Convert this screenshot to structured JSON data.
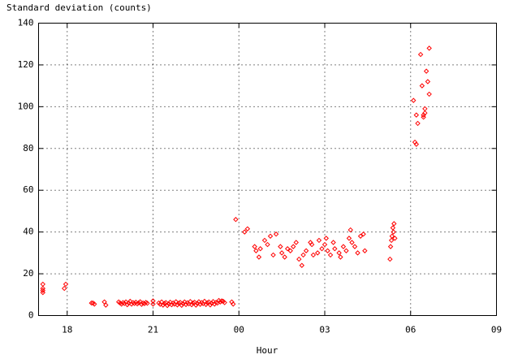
{
  "chart_data": {
    "type": "scatter",
    "ylabel": "Standard deviation (counts)",
    "xlabel": "Hour",
    "color": "#ff0000",
    "grid": true,
    "xlim": [
      17,
      33
    ],
    "xticks": [
      18,
      21,
      {
        "value": 24,
        "label": "00"
      },
      {
        "value": 27,
        "label": "03"
      },
      {
        "value": 30,
        "label": "06"
      },
      {
        "value": 33,
        "label": "09"
      }
    ],
    "ylim": [
      0,
      140
    ],
    "yticks": [
      0,
      20,
      40,
      60,
      80,
      100,
      120,
      140
    ],
    "x": [
      17.15,
      17.15,
      17.15,
      17.15,
      17.9,
      17.95,
      18.85,
      18.9,
      18.95,
      19.3,
      19.35,
      19.8,
      19.85,
      19.9,
      19.95,
      20.0,
      20.05,
      20.1,
      20.15,
      20.2,
      20.25,
      20.3,
      20.35,
      20.4,
      20.45,
      20.5,
      20.55,
      20.6,
      20.65,
      20.7,
      20.75,
      20.8,
      21.0,
      21.0,
      21.2,
      21.25,
      21.3,
      21.35,
      21.4,
      21.45,
      21.5,
      21.55,
      21.6,
      21.65,
      21.7,
      21.75,
      21.8,
      21.85,
      21.9,
      21.95,
      22.0,
      22.05,
      22.1,
      22.15,
      22.2,
      22.25,
      22.3,
      22.35,
      22.4,
      22.45,
      22.5,
      22.55,
      22.6,
      22.65,
      22.7,
      22.75,
      22.8,
      22.85,
      22.9,
      22.95,
      23.0,
      23.05,
      23.1,
      23.15,
      23.2,
      23.25,
      23.3,
      23.35,
      23.4,
      23.45,
      23.5,
      23.75,
      23.8,
      23.89,
      24.2,
      24.3,
      24.55,
      24.6,
      24.7,
      24.75,
      24.9,
      25.0,
      25.1,
      25.2,
      25.3,
      25.45,
      25.5,
      25.6,
      25.7,
      25.8,
      25.9,
      26.0,
      26.1,
      26.2,
      26.25,
      26.35,
      26.5,
      26.55,
      26.6,
      26.75,
      26.8,
      26.9,
      27.0,
      27.05,
      27.1,
      27.2,
      27.3,
      27.35,
      27.5,
      27.55,
      27.65,
      27.75,
      27.85,
      27.9,
      27.95,
      28.05,
      28.15,
      28.25,
      28.35,
      28.4,
      29.28,
      29.3,
      29.33,
      29.35,
      29.38,
      29.4,
      29.42,
      29.45,
      30.1,
      30.15,
      30.2,
      30.25,
      30.2,
      30.35,
      30.4,
      30.45,
      30.5,
      30.5,
      30.55,
      30.6,
      30.65,
      30.65,
      30.45
    ],
    "values": [
      15,
      13,
      12,
      11,
      13,
      15,
      6,
      6,
      5.5,
      6.5,
      5,
      6.5,
      6,
      5.5,
      6.2,
      5.8,
      6.5,
      5.2,
      6.0,
      6.8,
      5.5,
      6.2,
      5.8,
      6.4,
      5.6,
      6.1,
      6.6,
      5.4,
      6.0,
      5.7,
      6.3,
      5.9,
      7,
      5.5,
      6.0,
      5.4,
      6.5,
      5.0,
      5.8,
      6.2,
      4.8,
      5.6,
      6.4,
      5.2,
      6.0,
      5.5,
      6.6,
      5.1,
      5.9,
      6.3,
      4.9,
      5.7,
      6.5,
      5.3,
      6.1,
      5.6,
      6.7,
      5.2,
      6.0,
      6.4,
      5.0,
      5.8,
      6.6,
      5.4,
      6.2,
      5.7,
      6.8,
      5.3,
      6.1,
      6.5,
      5.1,
      5.9,
      6.7,
      5.5,
      6.3,
      6.0,
      7.2,
      6.5,
      7.0,
      6.8,
      6.2,
      6.5,
      5.5,
      46,
      40,
      41.5,
      33,
      31,
      28,
      32,
      36,
      34,
      38,
      29,
      39,
      33,
      30,
      28,
      32,
      31,
      33,
      35,
      27,
      24,
      29,
      31,
      35,
      34,
      29,
      30,
      36,
      32,
      34,
      37,
      31,
      29,
      35,
      32,
      30,
      28,
      33,
      31,
      37,
      41,
      35,
      33,
      30,
      38,
      39,
      31,
      27,
      33,
      36,
      38,
      42,
      40,
      44,
      37,
      103,
      83,
      96,
      92,
      82,
      125,
      110,
      95,
      99,
      97,
      117,
      112,
      106,
      128,
      96
    ]
  }
}
